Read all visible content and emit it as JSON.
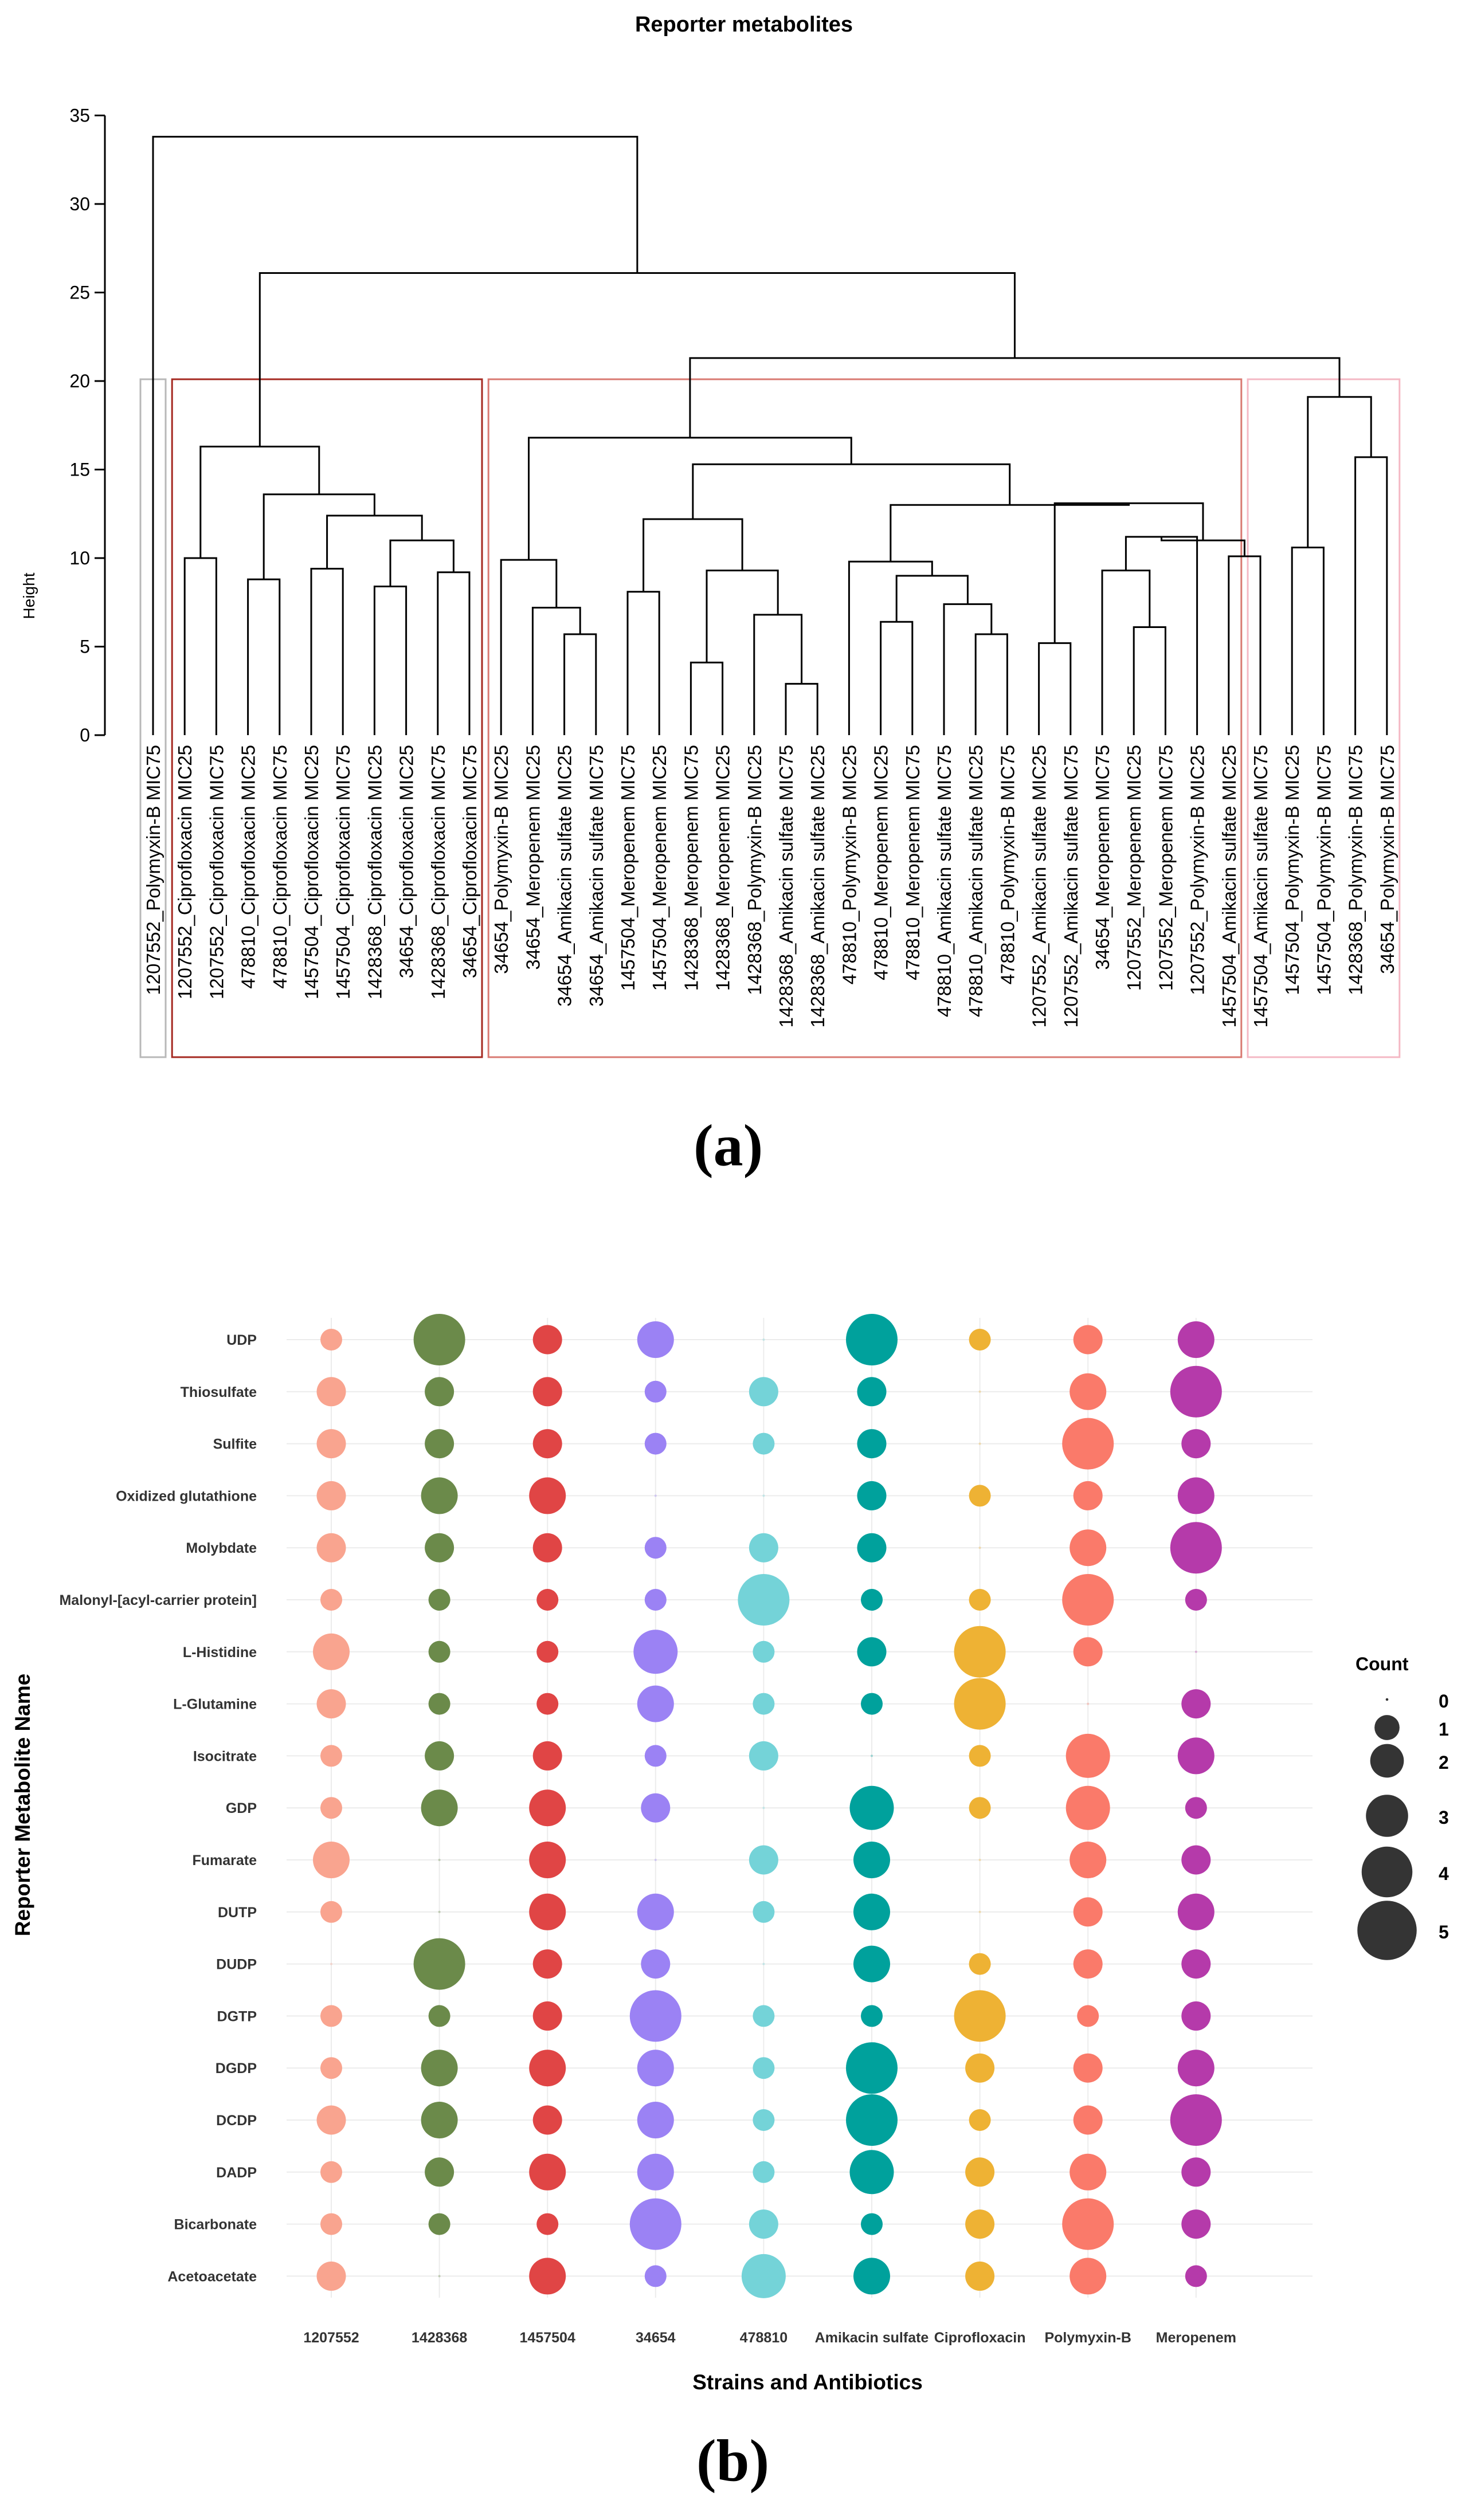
{
  "chart_data": [
    {
      "type": "dendrogram",
      "title": "Reporter metabolites",
      "ylabel": "Height",
      "ylim": [
        0,
        35
      ],
      "yticks": [
        0,
        5,
        10,
        15,
        20,
        25,
        30,
        35
      ],
      "leaves": [
        "1207552_Polymyxin-B MIC75",
        "1207552_Ciprofloxacin MIC25",
        "1207552_Ciprofloxacin MIC75",
        "478810_Ciprofloxacin MIC25",
        "478810_Ciprofloxacin MIC75",
        "1457504_Ciprofloxacin MIC25",
        "1457504_Ciprofloxacin MIC75",
        "1428368_Ciprofloxacin MIC25",
        "34654_Ciprofloxacin MIC25",
        "1428368_Ciprofloxacin MIC75",
        "34654_Ciprofloxacin MIC75",
        "34654_Polymyxin-B MIC25",
        "34654_Meropenem MIC25",
        "34654_Amikacin sulfate MIC25",
        "34654_Amikacin sulfate MIC75",
        "1457504_Meropenem MIC75",
        "1457504_Meropenem MIC25",
        "1428368_Meropenem MIC75",
        "1428368_Meropenem MIC25",
        "1428368_Polymyxin-B MIC25",
        "1428368_Amikacin sulfate MIC75",
        "1428368_Amikacin sulfate MIC25",
        "478810_Polymyxin-B MIC25",
        "478810_Meropenem MIC25",
        "478810_Meropenem MIC75",
        "478810_Amikacin sulfate MIC75",
        "478810_Amikacin sulfate MIC25",
        "478810_Polymyxin-B MIC75",
        "1207552_Amikacin sulfate MIC25",
        "1207552_Amikacin sulfate MIC75",
        "34654_Meropenem MIC75",
        "1207552_Meropenem MIC25",
        "1207552_Meropenem MIC75",
        "1207552_Polymyxin-B MIC25",
        "1457504_Amikacin sulfate MIC25",
        "1457504_Amikacin sulfate MIC75",
        "1457504_Polymyxin-B MIC25",
        "1457504_Polymyxin-B MIC75",
        "1428368_Polymyxin-B MIC75",
        "34654_Polymyxin-B MIC75"
      ],
      "merges": [
        [
          1,
          2,
          10.0
        ],
        [
          3,
          4,
          8.8
        ],
        [
          5,
          6,
          9.4
        ],
        [
          7,
          8,
          8.4
        ],
        [
          9,
          10,
          9.2
        ],
        [
          -4,
          -5,
          11.0
        ],
        [
          -3,
          -6,
          12.4
        ],
        [
          -2,
          -7,
          13.6
        ],
        [
          -1,
          -8,
          16.3
        ],
        [
          13,
          14,
          5.7
        ],
        [
          12,
          -10,
          7.2
        ],
        [
          11,
          -11,
          9.9
        ],
        [
          17,
          18,
          4.1
        ],
        [
          20,
          21,
          2.9
        ],
        [
          19,
          -14,
          6.8
        ],
        [
          -13,
          -15,
          9.3
        ],
        [
          15,
          16,
          8.1
        ],
        [
          -17,
          -16,
          12.2
        ],
        [
          23,
          24,
          6.4
        ],
        [
          26,
          27,
          5.7
        ],
        [
          25,
          -20,
          7.4
        ],
        [
          -19,
          -21,
          9.0
        ],
        [
          22,
          -22,
          9.8
        ],
        [
          31,
          32,
          6.1
        ],
        [
          30,
          -24,
          9.3
        ],
        [
          -25,
          33,
          11.2
        ],
        [
          34,
          35,
          10.1
        ],
        [
          -26,
          -27,
          11.0
        ],
        [
          28,
          29,
          5.2
        ],
        [
          -29,
          -28,
          13.1
        ],
        [
          -23,
          -30,
          13.0
        ],
        [
          -18,
          -31,
          15.3
        ],
        [
          -12,
          -32,
          16.8
        ],
        [
          37,
          36,
          10.6
        ],
        [
          38,
          39,
          15.7
        ],
        [
          -34,
          -35,
          19.1
        ],
        [
          -33,
          -36,
          21.3
        ],
        [
          -9,
          -37,
          26.1
        ],
        [
          0,
          -38,
          33.8
        ]
      ],
      "cluster_colors": [
        "#b8b8b8",
        "#a52a22",
        "#d97a72",
        "#f4b8c4"
      ]
    },
    {
      "type": "scatter",
      "xlabel": "Strains and Antibiotics",
      "ylabel": "Reporter Metabolite Name",
      "categories": [
        "1207552",
        "1428368",
        "1457504",
        "34654",
        "478810",
        "Amikacin sulfate",
        "Ciprofloxacin",
        "Polymyxin-B",
        "Meropenem"
      ],
      "rows": [
        "UDP",
        "Thiosulfate",
        "Sulfite",
        "Oxidized glutathione",
        "Molybdate",
        "Malonyl-[acyl-carrier protein]",
        "L-Histidine",
        "L-Glutamine",
        "Isocitrate",
        "GDP",
        "Fumarate",
        "DUTP",
        "DUDP",
        "DGTP",
        "DGDP",
        "DCDP",
        "DADP",
        "Bicarbonate",
        "Acetoacetate"
      ],
      "colors": [
        "#f9a48f",
        "#6b8a4a",
        "#e04545",
        "#9b82f4",
        "#74d3d8",
        "#00a19c",
        "#eeb234",
        "#fa7a6a",
        "#b53aaa"
      ],
      "values": [
        [
          1,
          5,
          2,
          3,
          0,
          5,
          1,
          2,
          3
        ],
        [
          2,
          2,
          2,
          1,
          2,
          2,
          0,
          3,
          5
        ],
        [
          2,
          2,
          2,
          1,
          1,
          2,
          0,
          5,
          2
        ],
        [
          2,
          3,
          3,
          0,
          0,
          2,
          1,
          2,
          3
        ],
        [
          2,
          2,
          2,
          1,
          2,
          2,
          0,
          3,
          5
        ],
        [
          1,
          1,
          1,
          1,
          5,
          1,
          1,
          5,
          1
        ],
        [
          3,
          1,
          1,
          4,
          1,
          2,
          5,
          2,
          0
        ],
        [
          2,
          1,
          1,
          3,
          1,
          1,
          5,
          0,
          2
        ],
        [
          1,
          2,
          2,
          1,
          2,
          0,
          1,
          4,
          3
        ],
        [
          1,
          3,
          3,
          2,
          0,
          4,
          1,
          4,
          1
        ],
        [
          3,
          0,
          3,
          0,
          2,
          3,
          0,
          3,
          2
        ],
        [
          1,
          0,
          3,
          3,
          1,
          3,
          0,
          2,
          3
        ],
        [
          0,
          5,
          2,
          2,
          0,
          3,
          1,
          2,
          2
        ],
        [
          1,
          1,
          2,
          5,
          1,
          1,
          5,
          1,
          2
        ],
        [
          1,
          3,
          3,
          3,
          1,
          5,
          2,
          2,
          3
        ],
        [
          2,
          3,
          2,
          3,
          1,
          5,
          1,
          2,
          5
        ],
        [
          1,
          2,
          3,
          3,
          1,
          4,
          2,
          3,
          2
        ],
        [
          1,
          1,
          1,
          5,
          2,
          1,
          2,
          5,
          2
        ],
        [
          2,
          0,
          3,
          1,
          4,
          3,
          2,
          3,
          1
        ]
      ],
      "legend": {
        "title": "Count",
        "placement": "right",
        "labels": [
          "0",
          "1",
          "2",
          "3",
          "4",
          "5"
        ],
        "color": "#111111"
      },
      "grid": true
    }
  ],
  "panel_labels": [
    "(a)",
    "(b)"
  ]
}
